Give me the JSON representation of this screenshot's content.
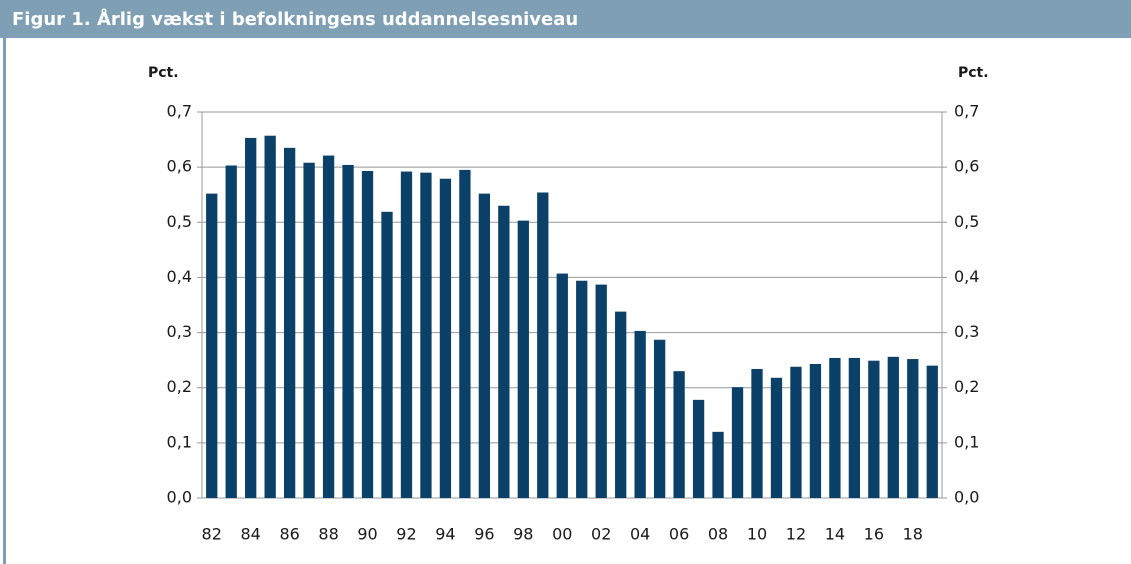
{
  "chart_data": {
    "type": "bar",
    "title": "Figur 1. Årlig vækst i befolkningens uddannelsesniveau",
    "y_label": "Pct.",
    "y2_label": "Pct.",
    "categories": [
      "82",
      null,
      "84",
      null,
      "86",
      null,
      "88",
      null,
      "90",
      null,
      "92",
      null,
      "94",
      null,
      "96",
      null,
      "98",
      null,
      "00",
      null,
      "02",
      null,
      "04",
      null,
      "06",
      null,
      "08",
      null,
      "10",
      null,
      "12",
      null,
      "14",
      null,
      "16",
      null,
      "18",
      null
    ],
    "values": [
      0.552,
      0.603,
      0.653,
      0.657,
      0.635,
      0.608,
      0.621,
      0.604,
      0.593,
      0.519,
      0.592,
      0.59,
      0.579,
      0.595,
      0.552,
      0.53,
      0.503,
      0.554,
      0.407,
      0.394,
      0.387,
      0.338,
      0.303,
      0.287,
      0.23,
      0.178,
      0.12,
      0.201,
      0.234,
      0.218,
      0.238,
      0.243,
      0.254,
      0.254,
      0.249,
      0.256,
      0.252,
      0.24
    ],
    "color": "#0b4168",
    "ylim": [
      0,
      0.7
    ],
    "yticks": [
      {
        "value": 0,
        "label": "0,0"
      },
      {
        "value": 0.1,
        "label": "0,1"
      },
      {
        "value": 0.2,
        "label": "0,2"
      },
      {
        "value": 0.3,
        "label": "0,3"
      },
      {
        "value": 0.4,
        "label": "0,4"
      },
      {
        "value": 0.5,
        "label": "0,5"
      },
      {
        "value": 0.6,
        "label": "0,6"
      },
      {
        "value": 0.7,
        "label": "0,7"
      }
    ],
    "y2lim": [
      0,
      0.7
    ],
    "y2ticks": [
      {
        "value": 0,
        "label": "0,0"
      },
      {
        "value": 0.1,
        "label": "0,1"
      },
      {
        "value": 0.2,
        "label": "0,2"
      },
      {
        "value": 0.3,
        "label": "0,3"
      },
      {
        "value": 0.4,
        "label": "0,4"
      },
      {
        "value": 0.5,
        "label": "0,5"
      },
      {
        "value": 0.6,
        "label": "0,6"
      },
      {
        "value": 0.7,
        "label": "0,7"
      }
    ],
    "grid": true
  }
}
